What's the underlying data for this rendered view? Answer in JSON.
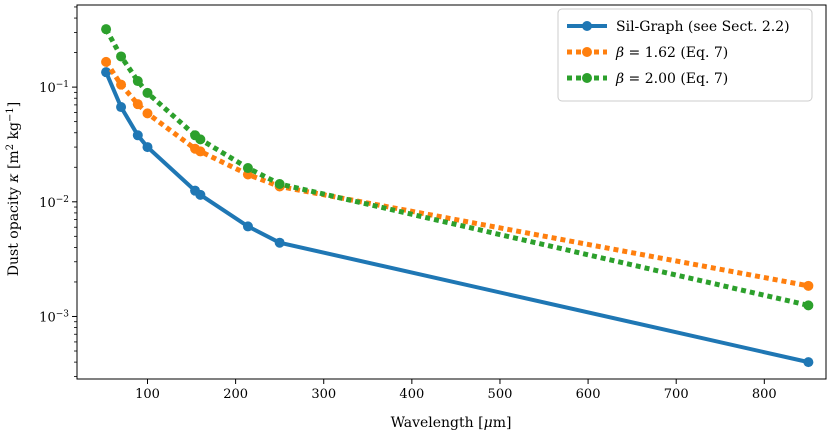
{
  "chart_data": {
    "type": "line",
    "xlabel": "Wavelength [μm]",
    "ylabel": "Dust opacity κ [m² kg⁻¹]",
    "xlim": [
      20,
      870
    ],
    "ylim": [
      0.000285,
      0.52
    ],
    "yscale": "log",
    "grid": false,
    "legend_position": "top-right",
    "x_ticks": [
      100,
      200,
      300,
      400,
      500,
      600,
      700,
      800
    ],
    "x_tick_labels": [
      "100",
      "200",
      "300",
      "400",
      "500",
      "600",
      "700",
      "800"
    ],
    "y_major_ticks": [
      0.001,
      0.01,
      0.1
    ],
    "y_tick_labels": [
      {
        "base": "10",
        "exp": "−3"
      },
      {
        "base": "10",
        "exp": "−2"
      },
      {
        "base": "10",
        "exp": "−1"
      }
    ],
    "series": [
      {
        "name": "Sil-Graph (see Sect. 2.2)",
        "color": "#1f77b4",
        "linestyle": "solid",
        "x": [
          53,
          70,
          89,
          100,
          154,
          160,
          214,
          250,
          850
        ],
        "y": [
          0.135,
          0.067,
          0.038,
          0.03,
          0.0125,
          0.0115,
          0.0061,
          0.0044,
          0.0004
        ]
      },
      {
        "name": "β = 1.62 (Eq. 7)",
        "color": "#ff7f0e",
        "linestyle": "dotted",
        "x": [
          53,
          70,
          89,
          100,
          154,
          160,
          214,
          250,
          850
        ],
        "y": [
          0.166,
          0.105,
          0.071,
          0.059,
          0.029,
          0.0275,
          0.0173,
          0.0136,
          0.00185
        ]
      },
      {
        "name": "β = 2.00 (Eq. 7)",
        "color": "#2ca02c",
        "linestyle": "dotted",
        "x": [
          53,
          70,
          89,
          100,
          154,
          160,
          214,
          250,
          850
        ],
        "y": [
          0.32,
          0.185,
          0.113,
          0.089,
          0.038,
          0.035,
          0.0197,
          0.0143,
          0.00125
        ]
      }
    ],
    "legend": [
      {
        "label": "Sil-Graph (see Sect. 2.2)"
      },
      {
        "symbol": "β",
        "text": " = 1.62 (Eq. 7)"
      },
      {
        "symbol": "β",
        "text": " = 2.00 (Eq. 7)"
      }
    ],
    "axis_titles": {
      "x": {
        "text": "Wavelength [",
        "unit": "μ",
        "unit_rest": "m]"
      },
      "y": {
        "prefix": "Dust opacity ",
        "symbol": "κ",
        "open": " [m",
        "sup1": "2",
        "mid": " kg",
        "sup2": "−1",
        "close": "]"
      }
    }
  }
}
